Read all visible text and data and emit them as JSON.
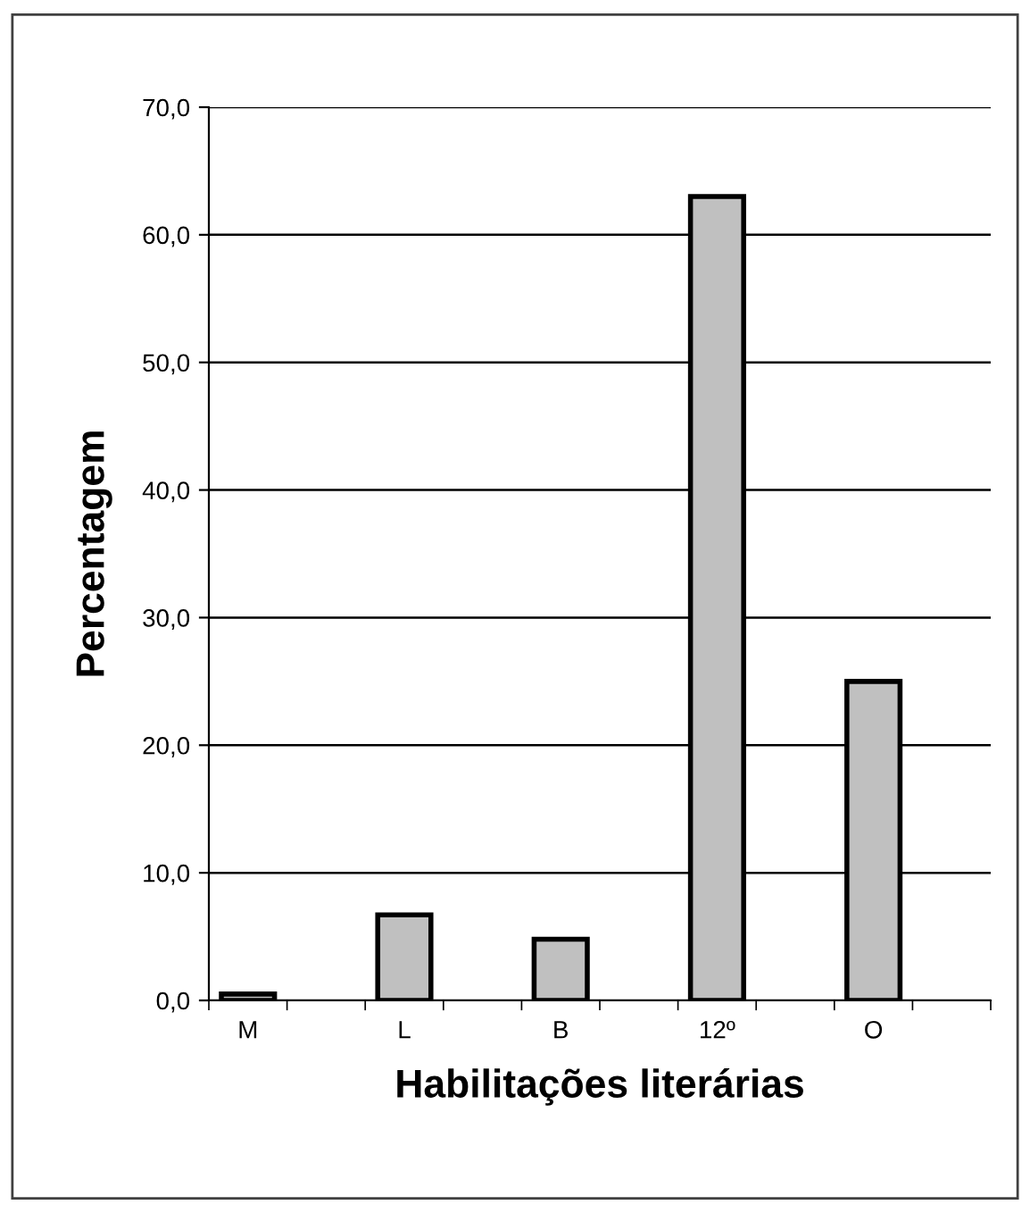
{
  "chart_data": {
    "type": "bar",
    "xlabel": "Habilitações literárias",
    "ylabel": "Percentagem",
    "categories": [
      "M",
      null,
      "L",
      null,
      "B",
      null,
      "12º",
      null,
      "O",
      null
    ],
    "values": [
      0.5,
      null,
      6.7,
      null,
      4.8,
      null,
      63.0,
      null,
      25.0,
      null
    ],
    "color": "#c0c0c0",
    "ylim": [
      0,
      70
    ],
    "yticks": [
      {
        "value": 0,
        "label": "0,0"
      },
      {
        "value": 10,
        "label": "10,0"
      },
      {
        "value": 20,
        "label": "20,0"
      },
      {
        "value": 30,
        "label": "30,0"
      },
      {
        "value": 40,
        "label": "40,0"
      },
      {
        "value": 50,
        "label": "50,0"
      },
      {
        "value": 60,
        "label": "60,0"
      },
      {
        "value": 70,
        "label": "70,0"
      }
    ],
    "grid": "y",
    "legend": false
  }
}
